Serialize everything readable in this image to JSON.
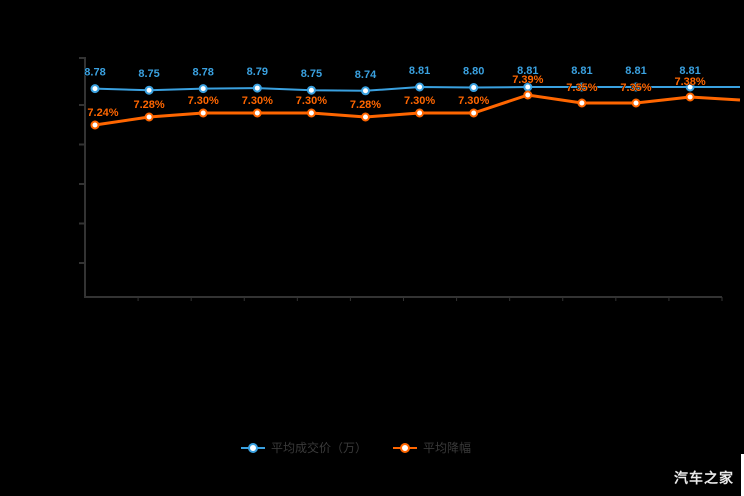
{
  "chart_data": {
    "type": "line",
    "x_tick_labels_visible": false,
    "axis_tick_labels_visible": false,
    "grid": false,
    "legend_position": "bottom",
    "background": "#000000",
    "axis_color": "#333333",
    "extends_to_right_edge": true,
    "point_count": 12,
    "series": [
      {
        "name": "平均成交价（万）",
        "color": "#3aa1e0",
        "marker": "hollow-circle",
        "values": [
          8.78,
          8.75,
          8.78,
          8.79,
          8.75,
          8.74,
          8.81,
          8.8,
          8.81,
          8.81,
          8.81,
          8.81
        ],
        "labels": [
          "8.78",
          "8.75",
          "8.78",
          "8.79",
          "8.75",
          "8.74",
          "8.81",
          "8.80",
          "8.81",
          "8.81",
          "8.81",
          "8.81"
        ]
      },
      {
        "name": "平均降幅",
        "color": "#ff6600",
        "marker": "hollow-circle",
        "values": [
          7.24,
          7.28,
          7.3,
          7.3,
          7.3,
          7.28,
          7.3,
          7.3,
          7.39,
          7.35,
          7.35,
          7.38
        ],
        "labels": [
          "7.24%",
          "7.28%",
          "7.30%",
          "7.30%",
          "7.30%",
          "7.28%",
          "7.30%",
          "7.30%",
          "7.39%",
          "7.35%",
          "7.35%",
          "7.38%"
        ]
      }
    ]
  },
  "legend": {
    "items": [
      {
        "label": "平均成交价（万）",
        "color": "#3aa1e0"
      },
      {
        "label": "平均降幅",
        "color": "#ff6600"
      }
    ]
  },
  "watermark": {
    "text": "汽车之家"
  }
}
